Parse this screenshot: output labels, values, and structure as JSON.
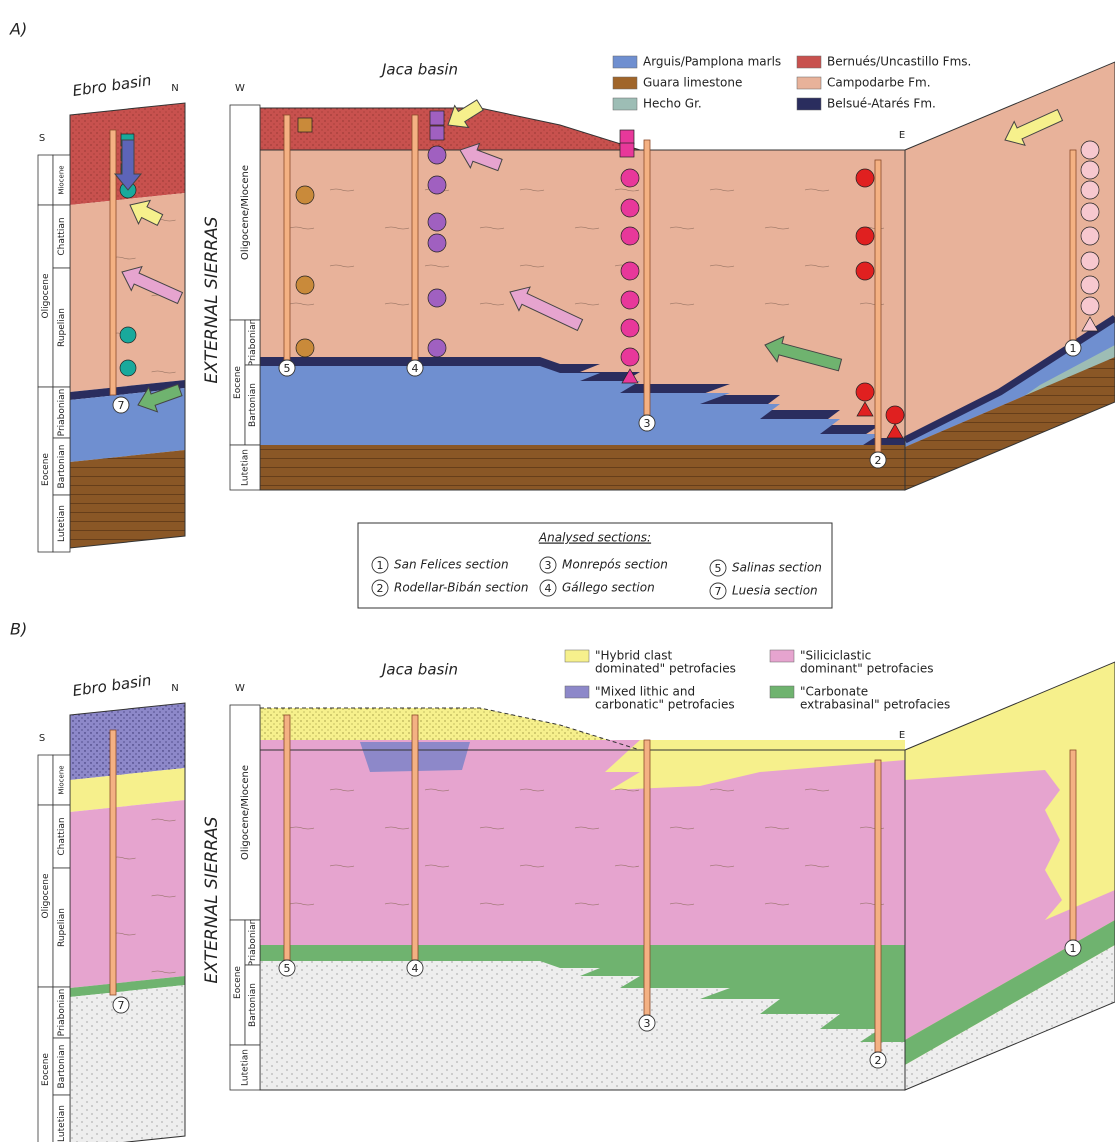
{
  "panels": [
    {
      "label": "A)",
      "ebro": {
        "title": "Ebro basin",
        "north": "N",
        "south": "S",
        "epochs": [
          "Oligocene",
          "Eocene"
        ],
        "stages": [
          "Miocene",
          "Chattian",
          "Rupelian",
          "Priabonian",
          "Bartonian",
          "Lutetian"
        ],
        "section": "7"
      },
      "jaca": {
        "title": "Jaca basin",
        "west": "W",
        "east": "E",
        "side_label": "EXTERNAL SIERRAS",
        "epochs": [
          "Oligocene/Miocene",
          "Eocene"
        ],
        "stages": [
          "Priabonian",
          "Bartonian",
          "Lutetian"
        ],
        "sections": [
          "5",
          "4",
          "3",
          "2",
          "1"
        ]
      },
      "legend": [
        {
          "lines": [
            "Arguis/Pamplona marls"
          ],
          "color": "#6f8fd0"
        },
        {
          "lines": [
            "Guara limestone"
          ],
          "color": "#a0652a"
        },
        {
          "lines": [
            "Hecho Gr."
          ],
          "color": "#9dbdb5"
        },
        {
          "lines": [
            "Bernués/Uncastillo Fms."
          ],
          "color": "#c8514e"
        },
        {
          "lines": [
            "Campodarbe Fm."
          ],
          "color": "#e8b29a"
        },
        {
          "lines": [
            "Belsué-Atarés Fm."
          ],
          "color": "#2a2d5e"
        }
      ],
      "analysed": {
        "title": "Analysed sections:",
        "items": [
          {
            "num": "1",
            "name": "San Felices section"
          },
          {
            "num": "2",
            "name": "Rodellar-Bibán section"
          },
          {
            "num": "3",
            "name": "Monrepós section"
          },
          {
            "num": "4",
            "name": "Gállego section"
          },
          {
            "num": "5",
            "name": "Salinas section"
          },
          {
            "num": "7",
            "name": "Luesia section"
          }
        ]
      }
    },
    {
      "label": "B)",
      "ebro": {
        "title": "Ebro basin",
        "north": "N",
        "south": "S",
        "epochs": [
          "Oligocene",
          "Eocene"
        ],
        "stages": [
          "Miocene",
          "Chattian",
          "Rupelian",
          "Priabonian",
          "Bartonian",
          "Lutetian"
        ],
        "section": "7"
      },
      "jaca": {
        "title": "Jaca basin",
        "west": "W",
        "east": "E",
        "side_label": "EXTERNAL SIERRAS",
        "epochs": [
          "Oligocene/Miocene",
          "Eocene"
        ],
        "stages": [
          "Priabonian",
          "Bartonian",
          "Lutetian"
        ],
        "sections": [
          "5",
          "4",
          "3",
          "2",
          "1"
        ]
      },
      "legend": [
        {
          "lines": [
            "\"Hybrid clast",
            "dominated\" petrofacies"
          ],
          "color": "#f6f08c"
        },
        {
          "lines": [
            "\"Mixed lithic and",
            "carbonatic\" petrofacies"
          ],
          "color": "#8d88c9"
        },
        {
          "lines": [
            "\"Siliciclastic",
            "dominant\" petrofacies"
          ],
          "color": "#e6a4cf"
        },
        {
          "lines": [
            "\"Carbonate",
            "extrabasinal\" petrofacies"
          ],
          "color": "#6fb36f"
        }
      ]
    }
  ]
}
